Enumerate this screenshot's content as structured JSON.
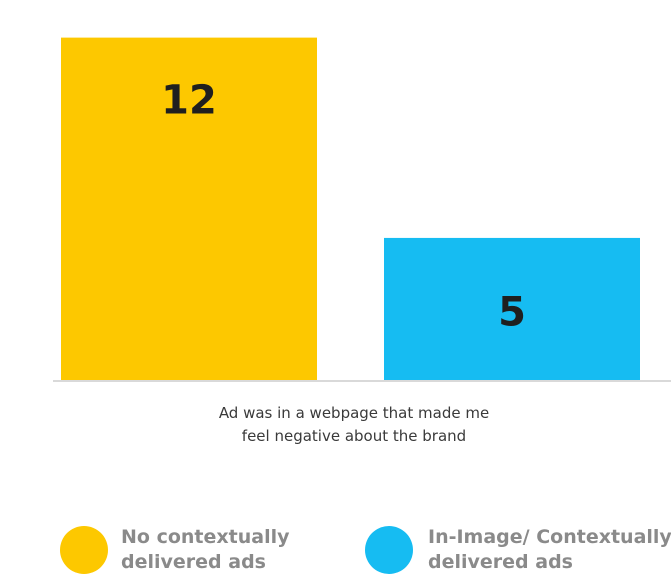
{
  "chart_data": {
    "type": "bar",
    "categories": [
      "Ad was in a webpage that made me feel negative about the brand"
    ],
    "category_label_lines": [
      "Ad was in a webpage that made me",
      "feel negative about the brand"
    ],
    "series": [
      {
        "name": "No contextually delivered ads",
        "name_lines": [
          "No contextually",
          "delivered ads"
        ],
        "values": [
          12
        ],
        "color": "#fdc800"
      },
      {
        "name": "In-Image/ Contextually delivered ads",
        "name_lines": [
          "In-Image/ Contextually",
          "delivered ads"
        ],
        "values": [
          5
        ],
        "color": "#16bcf2"
      }
    ],
    "ylim": [
      0,
      13
    ],
    "grid": false,
    "legend": "bottom"
  }
}
